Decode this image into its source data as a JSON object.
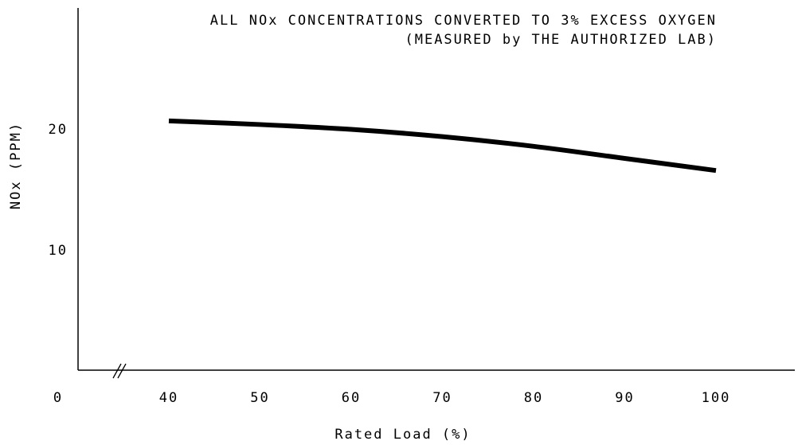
{
  "chart_data": {
    "type": "line",
    "title_lines": [
      "ALL NOx CONCENTRATIONS CONVERTED TO 3% EXCESS OXYGEN",
      "(MEASURED by THE AUTHORIZED LAB)"
    ],
    "xlabel": "Rated Load (%)",
    "ylabel": "NOx (PPM)",
    "x_origin_label": "0",
    "x_ticks": [
      40,
      50,
      60,
      70,
      80,
      90,
      100
    ],
    "y_ticks": [
      10,
      20
    ],
    "xlim": [
      30,
      108
    ],
    "ylim": [
      0,
      30
    ],
    "axis_break": true,
    "grid": false,
    "series": [
      {
        "x": [
          40,
          50,
          60,
          70,
          80,
          90,
          100
        ],
        "y": [
          20.6,
          20.3,
          19.9,
          19.3,
          18.5,
          17.5,
          16.5
        ]
      }
    ]
  }
}
